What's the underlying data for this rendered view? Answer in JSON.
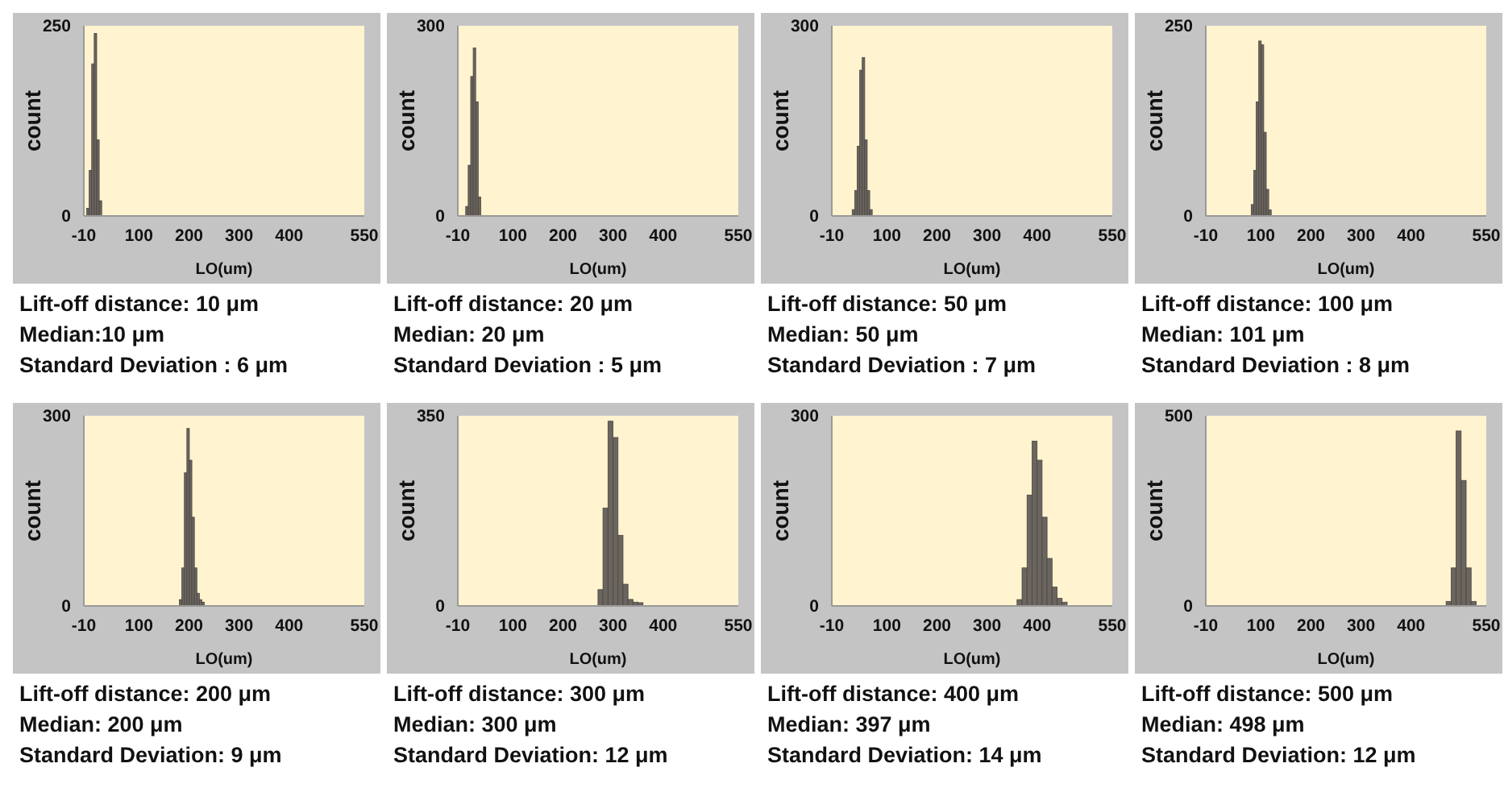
{
  "chart_data": [
    {
      "type": "histogram",
      "xlabel": "LO(um)",
      "ylabel": "count",
      "bins": [
        -5,
        0,
        5,
        10,
        15,
        20,
        25
      ],
      "values": [
        10,
        60,
        200,
        240,
        100,
        20
      ],
      "color": "#6b6560",
      "xlim": [
        -10,
        550
      ],
      "xticks": [
        -10,
        100,
        200,
        300,
        400,
        550
      ],
      "ylim": [
        0,
        250
      ],
      "yticks": [
        0,
        250
      ],
      "annotations": [
        "Lift-off distance: 10 μm",
        "Median:10 μm",
        "Standard Deviation :  6 μm"
      ]
    },
    {
      "type": "histogram",
      "xlabel": "LO(um)",
      "ylabel": "count",
      "bins": [
        5,
        10,
        15,
        20,
        25,
        30,
        35
      ],
      "values": [
        15,
        80,
        220,
        265,
        180,
        30
      ],
      "color": "#6b6560",
      "xlim": [
        -10,
        550
      ],
      "xticks": [
        -10,
        100,
        200,
        300,
        400,
        550
      ],
      "ylim": [
        0,
        300
      ],
      "yticks": [
        0,
        300
      ],
      "annotations": [
        "Lift-off distance: 20 μm",
        "Median: 20 μm",
        "Standard Deviation :  5 μm"
      ]
    },
    {
      "type": "histogram",
      "xlabel": "LO(um)",
      "ylabel": "count",
      "bins": [
        30,
        35,
        40,
        45,
        50,
        55,
        60,
        65,
        70
      ],
      "values": [
        10,
        40,
        110,
        230,
        250,
        120,
        40,
        10
      ],
      "color": "#6b6560",
      "xlim": [
        -10,
        550
      ],
      "xticks": [
        -10,
        100,
        200,
        300,
        400,
        550
      ],
      "ylim": [
        0,
        300
      ],
      "yticks": [
        0,
        300
      ],
      "annotations": [
        "Lift-off distance: 50 μm",
        "Median: 50 μm",
        "Standard Deviation :  7 μm"
      ]
    },
    {
      "type": "histogram",
      "xlabel": "LO(um)",
      "ylabel": "count",
      "bins": [
        80,
        85,
        90,
        95,
        100,
        105,
        110,
        115,
        120
      ],
      "values": [
        15,
        60,
        150,
        230,
        225,
        110,
        35,
        8
      ],
      "color": "#6b6560",
      "xlim": [
        -10,
        550
      ],
      "xticks": [
        -10,
        100,
        200,
        300,
        400,
        550
      ],
      "ylim": [
        0,
        250
      ],
      "yticks": [
        0,
        250
      ],
      "annotations": [
        "Lift-off distance: 100 μm",
        "Median: 101 μm",
        "Standard Deviation : 8 μm"
      ]
    },
    {
      "type": "histogram",
      "xlabel": "LO(um)",
      "ylabel": "count",
      "bins": [
        180,
        185,
        190,
        195,
        200,
        205,
        210,
        215,
        220,
        225,
        230
      ],
      "values": [
        10,
        60,
        210,
        280,
        230,
        140,
        60,
        20,
        10,
        6
      ],
      "color": "#6b6560",
      "xlim": [
        -10,
        550
      ],
      "xticks": [
        -10,
        100,
        200,
        300,
        400,
        550
      ],
      "ylim": [
        0,
        300
      ],
      "yticks": [
        0,
        300
      ],
      "annotations": [
        "Lift-off distance: 200 μm",
        "Median: 200 μm",
        "Standard Deviation:  9 μm"
      ]
    },
    {
      "type": "histogram",
      "xlabel": "LO(um)",
      "ylabel": "count",
      "bins": [
        270,
        280,
        290,
        300,
        310,
        320,
        330,
        340,
        350,
        360
      ],
      "values": [
        30,
        180,
        340,
        310,
        130,
        40,
        12,
        7,
        6
      ],
      "color": "#6b6560",
      "xlim": [
        -10,
        550
      ],
      "xticks": [
        -10,
        100,
        200,
        300,
        400,
        550
      ],
      "ylim": [
        0,
        350
      ],
      "yticks": [
        0,
        350
      ],
      "annotations": [
        "Lift-off distance: 300 μm",
        "Median: 300 μm",
        "Standard Deviation:  12 μm"
      ]
    },
    {
      "type": "histogram",
      "xlabel": "LO(um)",
      "ylabel": "count",
      "bins": [
        360,
        370,
        380,
        390,
        400,
        410,
        420,
        430,
        440,
        450,
        460
      ],
      "values": [
        10,
        60,
        175,
        260,
        230,
        140,
        75,
        30,
        12,
        6
      ],
      "color": "#6b6560",
      "xlim": [
        -10,
        550
      ],
      "xticks": [
        -10,
        100,
        200,
        300,
        400,
        550
      ],
      "ylim": [
        0,
        300
      ],
      "yticks": [
        0,
        300
      ],
      "annotations": [
        "Lift-off distance: 400 μm",
        "Median: 397 μm",
        "Standard Deviation:  14 μm"
      ]
    },
    {
      "type": "histogram",
      "xlabel": "LO(um)",
      "ylabel": "count",
      "bins": [
        470,
        480,
        490,
        500,
        510,
        520,
        530
      ],
      "values": [
        12,
        100,
        460,
        330,
        100,
        12
      ],
      "color": "#6b6560",
      "xlim": [
        -10,
        550
      ],
      "xticks": [
        -10,
        100,
        200,
        300,
        400,
        550
      ],
      "ylim": [
        0,
        500
      ],
      "yticks": [
        0,
        500
      ],
      "annotations": [
        "Lift-off distance: 500 μm",
        "Median: 498 μm",
        "Standard Deviation:  12 μm"
      ]
    }
  ]
}
